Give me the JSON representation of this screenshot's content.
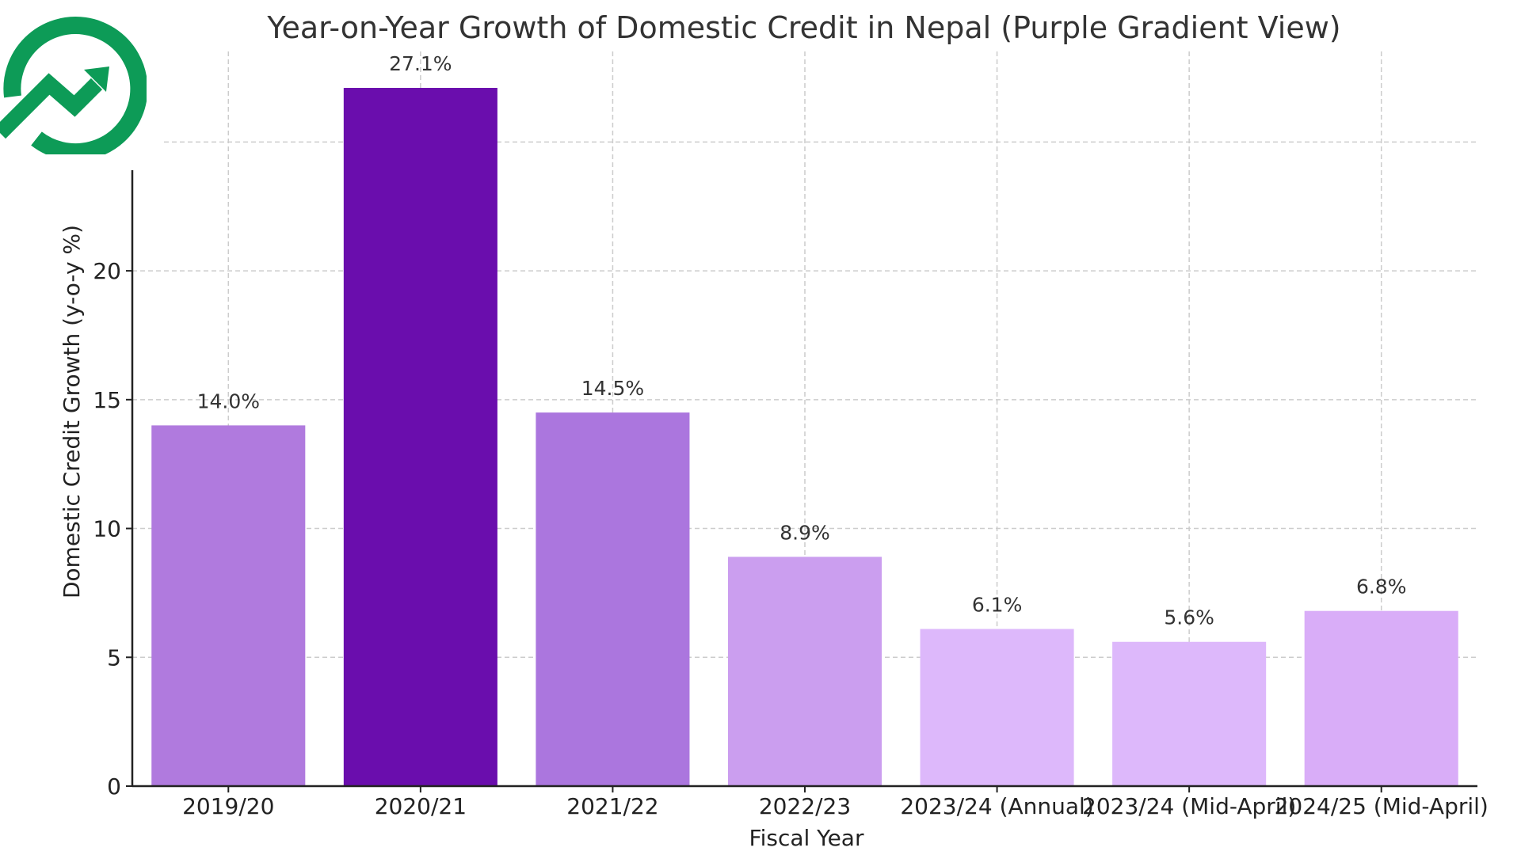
{
  "chart_data": {
    "type": "bar",
    "title": "Year-on-Year Growth of Domestic Credit in Nepal (Purple Gradient View)",
    "xlabel": "Fiscal Year",
    "ylabel": "Domestic Credit Growth (y-o-y %)",
    "categories": [
      "2019/20",
      "2020/21",
      "2021/22",
      "2022/23",
      "2023/24 (Annual)",
      "2023/24 (Mid-April)",
      "2024/25 (Mid-April)"
    ],
    "values": [
      14.0,
      27.1,
      14.5,
      8.9,
      6.1,
      5.6,
      6.8
    ],
    "data_labels": [
      "14.0%",
      "27.1%",
      "14.5%",
      "8.9%",
      "6.1%",
      "5.6%",
      "6.8%"
    ],
    "bar_colors": [
      "#b07ade",
      "#6a0dad",
      "#ab76de",
      "#cb9eef",
      "#ddb8fb",
      "#ddb8fb",
      "#d9adf8"
    ],
    "yticks": [
      0,
      5,
      10,
      15,
      20
    ],
    "ylim": [
      0,
      27.5
    ],
    "grid": true
  },
  "logo": {
    "name": "growth-chart-logo",
    "color": "#0d9b57"
  }
}
